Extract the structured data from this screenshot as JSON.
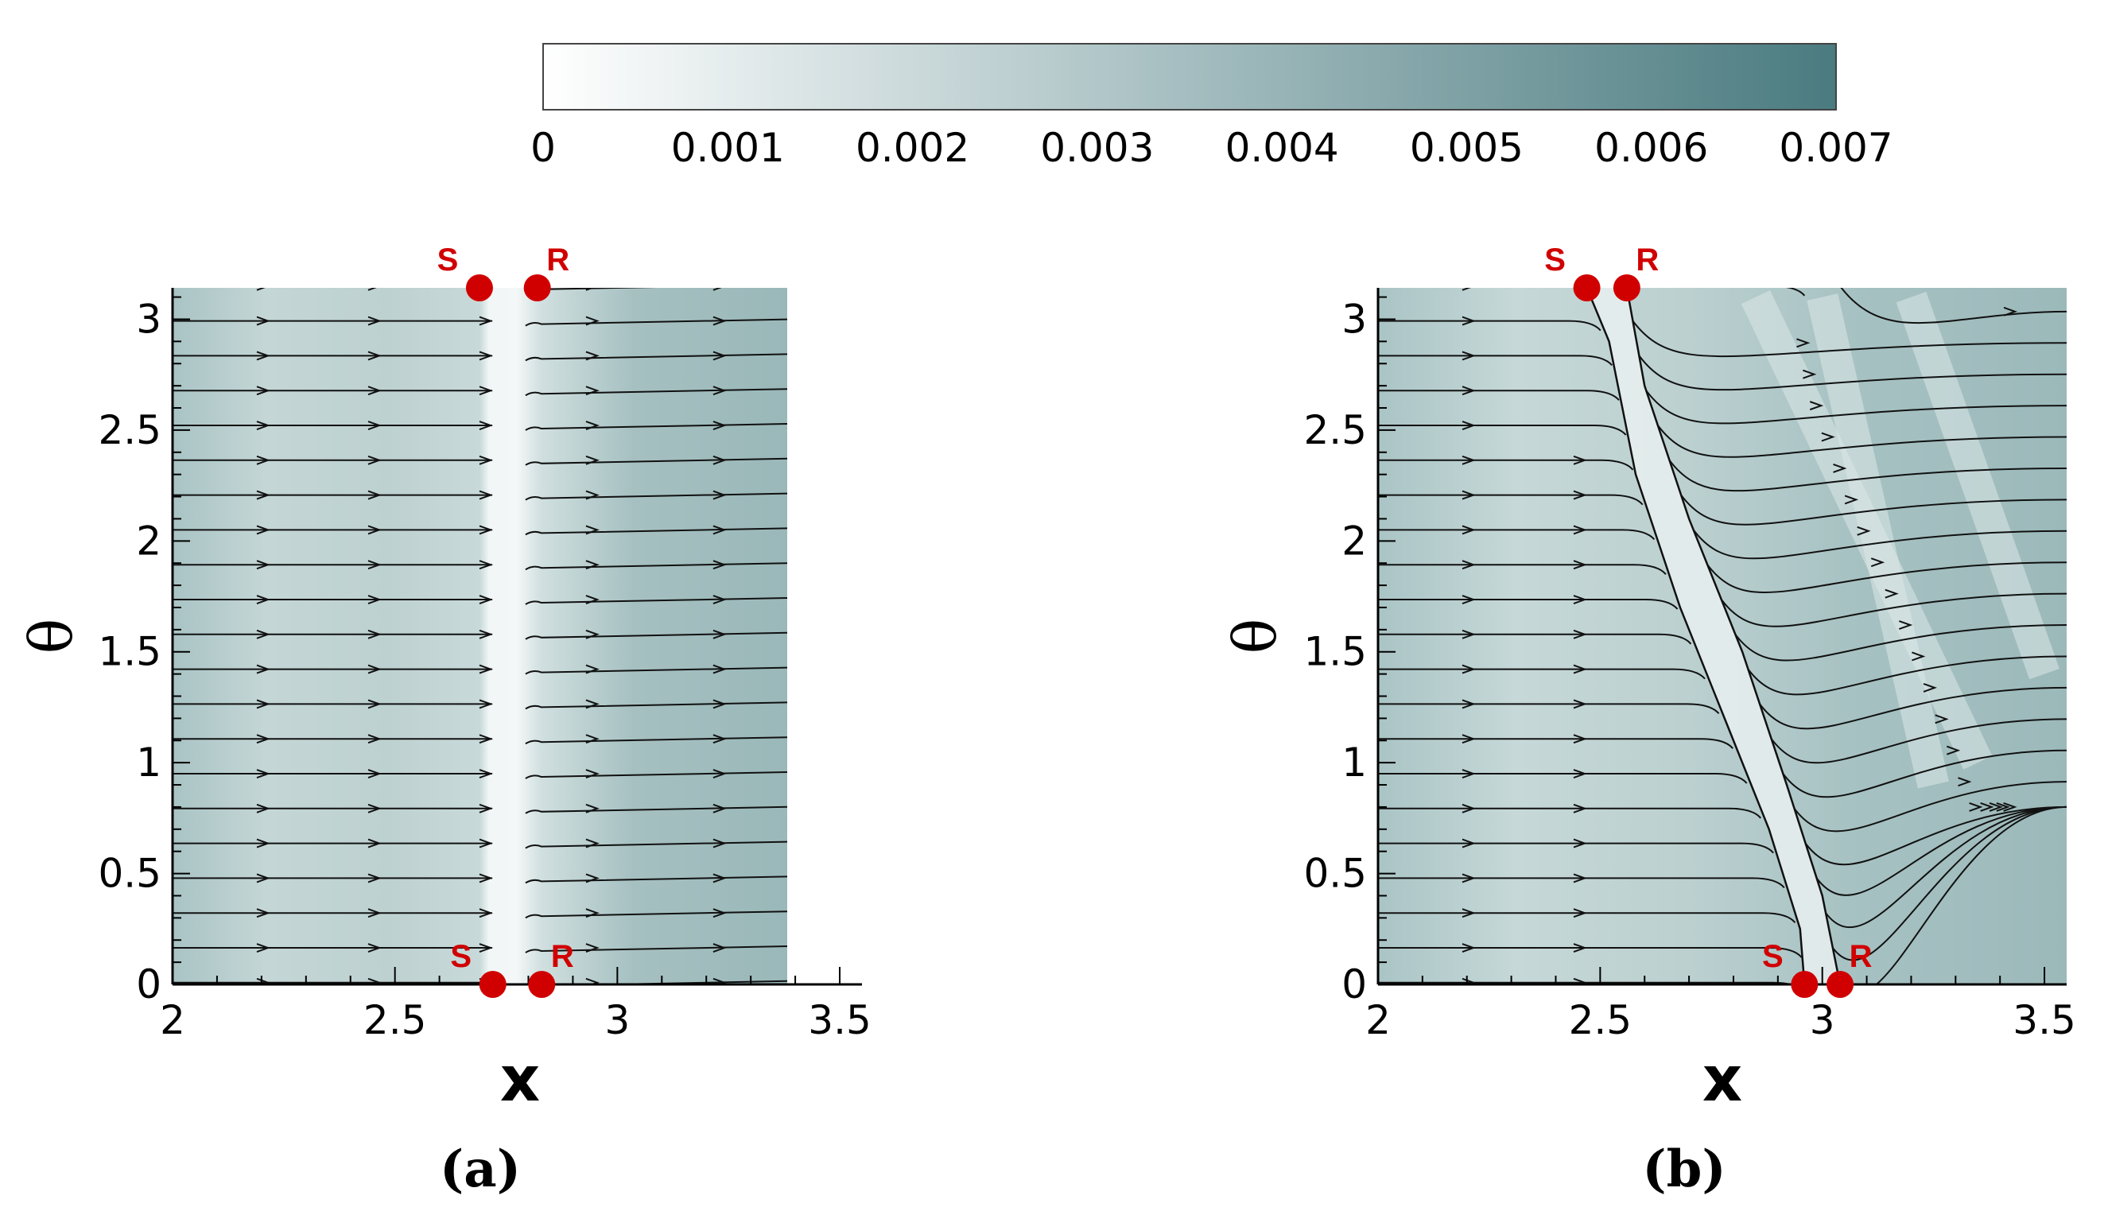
{
  "chart_data": [
    {
      "type": "heatmap",
      "panel": "a",
      "caption": "(a)",
      "xlabel": "x",
      "ylabel": "θ",
      "xlim": [
        2,
        3.55
      ],
      "ylim": [
        0,
        3.14159
      ],
      "x_ticks": [
        "2",
        "2.5",
        "3",
        "3.5"
      ],
      "x_tick_values": [
        2,
        2.5,
        3,
        3.5
      ],
      "y_ticks": [
        "0",
        "0.5",
        "1",
        "1.5",
        "2",
        "2.5",
        "3"
      ],
      "y_tick_values": [
        0,
        0.5,
        1,
        1.5,
        2,
        2.5,
        3
      ],
      "data_x_extent": [
        2,
        3.38
      ],
      "separation_line": [
        [
          2.74,
          0
        ],
        [
          2.74,
          3.14159
        ]
      ],
      "markers": [
        {
          "label": "S",
          "x": 2.69,
          "y": 3.14159
        },
        {
          "label": "R",
          "x": 2.82,
          "y": 3.14159
        },
        {
          "label": "S",
          "x": 2.72,
          "y": 0
        },
        {
          "label": "R",
          "x": 2.83,
          "y": 0
        }
      ],
      "streamline_count": 20
    },
    {
      "type": "heatmap",
      "panel": "b",
      "caption": "(b)",
      "xlabel": "x",
      "ylabel": "θ",
      "xlim": [
        2,
        3.55
      ],
      "ylim": [
        0,
        3.14159
      ],
      "x_ticks": [
        "2",
        "2.5",
        "3",
        "3.5"
      ],
      "x_tick_values": [
        2,
        2.5,
        3,
        3.5
      ],
      "y_ticks": [
        "0",
        "0.5",
        "1",
        "1.5",
        "2",
        "2.5",
        "3"
      ],
      "y_tick_values": [
        0,
        0.5,
        1,
        1.5,
        2,
        2.5,
        3
      ],
      "data_x_extent": [
        2,
        3.55
      ],
      "separation_line": [
        [
          2.47,
          3.14159
        ],
        [
          2.52,
          2.9
        ],
        [
          2.58,
          2.3
        ],
        [
          2.68,
          1.7
        ],
        [
          2.78,
          1.2
        ],
        [
          2.88,
          0.7
        ],
        [
          2.95,
          0.25
        ],
        [
          2.96,
          0
        ]
      ],
      "reattachment_line": [
        [
          2.56,
          3.14159
        ],
        [
          2.6,
          2.7
        ],
        [
          2.7,
          2.1
        ],
        [
          2.82,
          1.5
        ],
        [
          2.92,
          0.9
        ],
        [
          3.0,
          0.4
        ],
        [
          3.04,
          0
        ]
      ],
      "markers": [
        {
          "label": "S",
          "x": 2.47,
          "y": 3.14159
        },
        {
          "label": "R",
          "x": 2.56,
          "y": 3.14159
        },
        {
          "label": "S",
          "x": 2.96,
          "y": 0
        },
        {
          "label": "R",
          "x": 3.04,
          "y": 0
        }
      ],
      "streamline_count": 20
    }
  ],
  "colorbar": {
    "min": 0,
    "max": 0.007,
    "tick_labels": [
      "0",
      "0.001",
      "0.002",
      "0.003",
      "0.004",
      "0.005",
      "0.006",
      "0.007"
    ],
    "tick_values": [
      0,
      0.001,
      0.002,
      0.003,
      0.004,
      0.005,
      0.006,
      0.007
    ],
    "color_low": "#ffffff",
    "color_high": "#4a7b80"
  },
  "colors": {
    "field_base": "#b9cdcd",
    "field_light": "#eef3f3",
    "field_dark": "#9fbbbc",
    "marker": "#d10000",
    "streamline": "#000000"
  }
}
